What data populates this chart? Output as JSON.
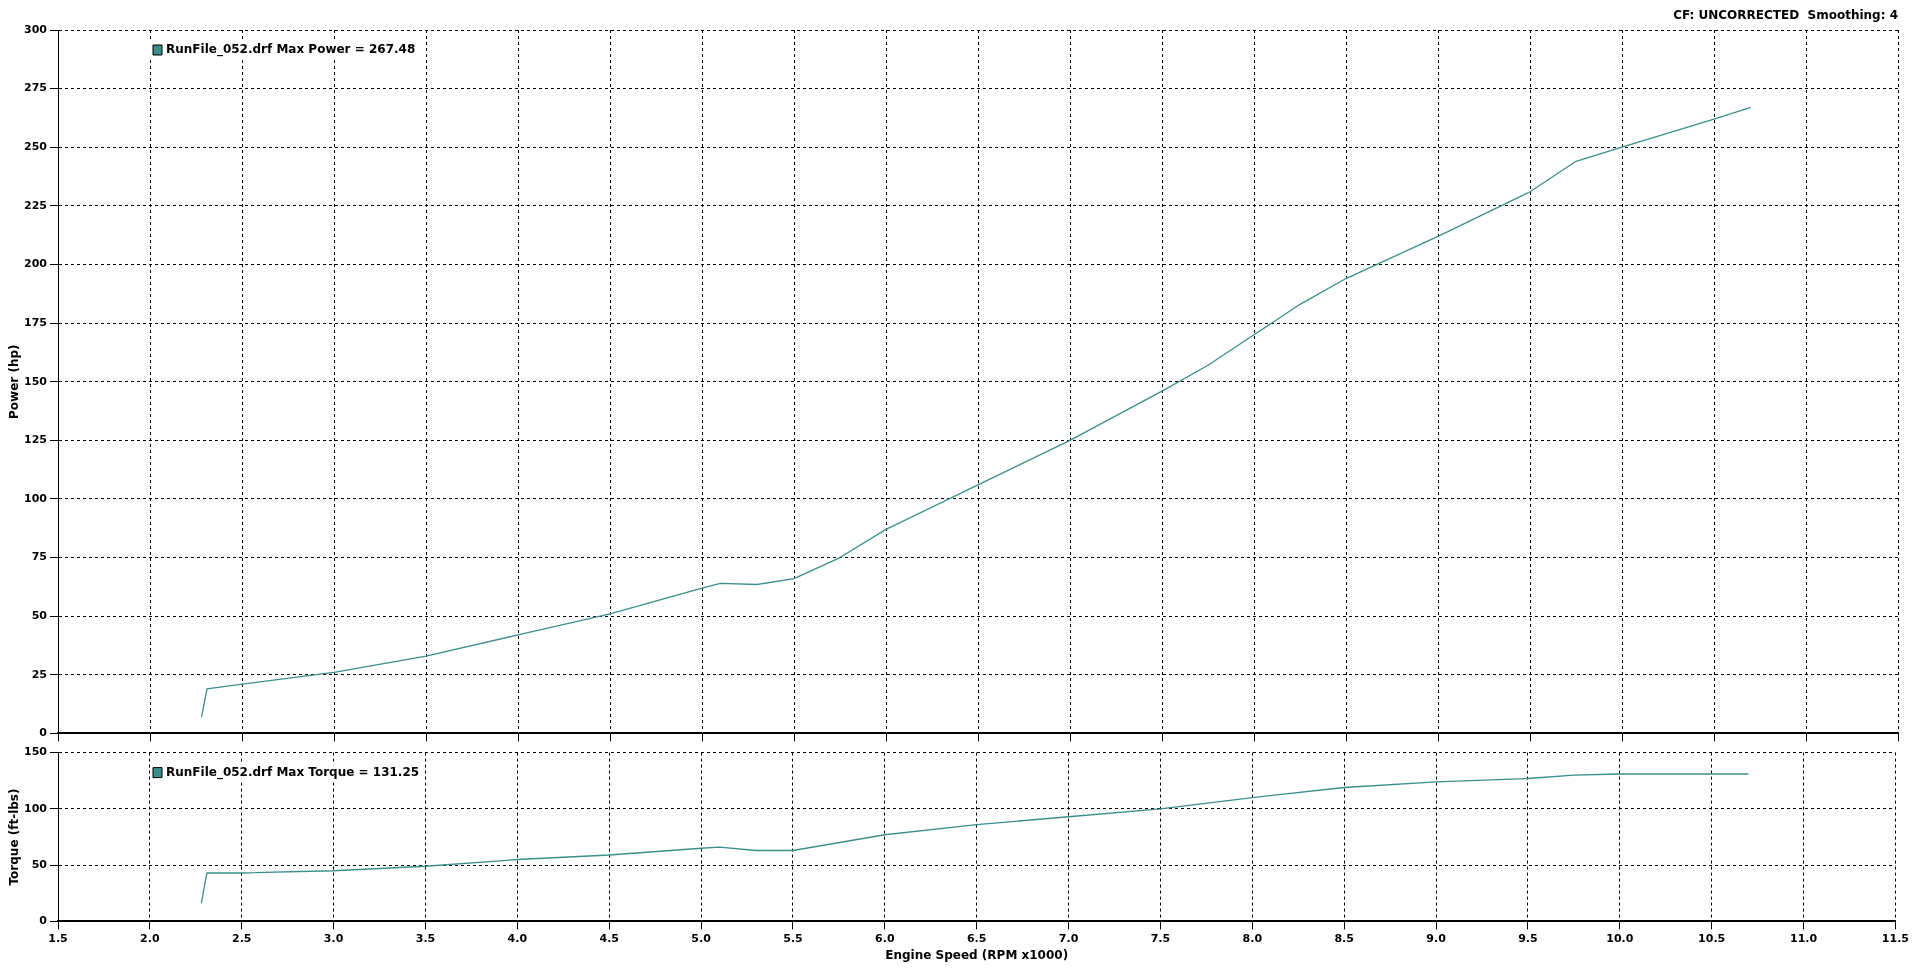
{
  "chart_data": [
    {
      "type": "line",
      "annotations": [
        "CF: UNCORRECTED  Smoothing: 4"
      ],
      "ylabel": "Power (hp)",
      "xlim": [
        1.5,
        11.5
      ],
      "ylim": [
        0,
        300
      ],
      "yticks": [
        0,
        25,
        50,
        75,
        100,
        125,
        150,
        175,
        200,
        225,
        250,
        275,
        300
      ],
      "grid": true,
      "legend": "top left",
      "tick_labels": "y",
      "marker": "none",
      "line_style": "solid",
      "xticks": [
        {
          "value": 1.5,
          "label": null
        },
        {
          "value": 2,
          "label": null
        },
        {
          "value": 2.5,
          "label": null
        },
        {
          "value": 3,
          "label": null
        },
        {
          "value": 3.5,
          "label": null
        },
        {
          "value": 4,
          "label": null
        },
        {
          "value": 4.5,
          "label": null
        },
        {
          "value": 5,
          "label": null
        },
        {
          "value": 5.5,
          "label": null
        },
        {
          "value": 6,
          "label": null
        },
        {
          "value": 6.5,
          "label": null
        },
        {
          "value": 7,
          "label": null
        },
        {
          "value": 7.5,
          "label": null
        },
        {
          "value": 8,
          "label": null
        },
        {
          "value": 8.5,
          "label": null
        },
        {
          "value": 9,
          "label": null
        },
        {
          "value": 9.5,
          "label": null
        },
        {
          "value": 10,
          "label": null
        },
        {
          "value": 10.5,
          "label": null
        },
        {
          "value": 11,
          "label": null
        },
        {
          "value": 11.5,
          "label": null
        }
      ],
      "x": [
        2.28,
        2.31,
        2.5,
        3.0,
        3.5,
        4.0,
        4.5,
        5.0,
        5.1,
        5.3,
        5.5,
        5.75,
        6.0,
        6.5,
        7.0,
        7.5,
        7.75,
        8.0,
        8.25,
        8.5,
        9.0,
        9.5,
        9.75,
        10.0,
        10.5,
        10.7
      ],
      "series": [
        {
          "name": "RunFile_052.drf Max Power = 267.48",
          "color": "#3a8f8a",
          "values": [
            7,
            19,
            21,
            26,
            33,
            42,
            51,
            62,
            64,
            63.5,
            66,
            75,
            87,
            106,
            125,
            146,
            157,
            170,
            183,
            194,
            212,
            231,
            244,
            250,
            262,
            267
          ]
        }
      ]
    },
    {
      "type": "line",
      "xlabel": "Engine Speed (RPM x1000)",
      "ylabel": "Torque (ft-lbs)",
      "xlim": [
        1.5,
        11.5
      ],
      "ylim": [
        0,
        150
      ],
      "yticks": [
        0,
        50,
        100,
        150
      ],
      "xticks": [
        1.5,
        {
          "value": 2,
          "label": "2.0"
        },
        2.5,
        {
          "value": 3,
          "label": "3.0"
        },
        3.5,
        {
          "value": 4,
          "label": "4.0"
        },
        4.5,
        {
          "value": 5,
          "label": "5.0"
        },
        5.5,
        {
          "value": 6,
          "label": "6.0"
        },
        6.5,
        {
          "value": 7,
          "label": "7.0"
        },
        7.5,
        {
          "value": 8,
          "label": "8.0"
        },
        8.5,
        {
          "value": 9,
          "label": "9.0"
        },
        9.5,
        {
          "value": 10,
          "label": "10.0"
        },
        10.5,
        {
          "value": 11,
          "label": "11.0"
        },
        11.5
      ],
      "grid": true,
      "legend": "top left",
      "marker": "none",
      "line_style": "solid",
      "x": [
        2.28,
        2.31,
        2.5,
        3.0,
        3.5,
        4.0,
        4.5,
        5.0,
        5.1,
        5.3,
        5.5,
        6.0,
        6.5,
        7.0,
        7.5,
        8.0,
        8.5,
        9.0,
        9.5,
        9.75,
        10.0,
        10.5,
        10.7
      ],
      "series": [
        {
          "name": "RunFile_052.drf Max Torque = 131.25",
          "color": "#3a8f8a",
          "values": [
            16,
            43,
            43,
            45,
            49,
            55,
            59,
            65,
            66,
            63,
            63,
            77,
            86,
            93,
            100,
            110,
            119,
            124,
            127,
            130,
            131,
            131,
            131
          ]
        }
      ]
    }
  ]
}
